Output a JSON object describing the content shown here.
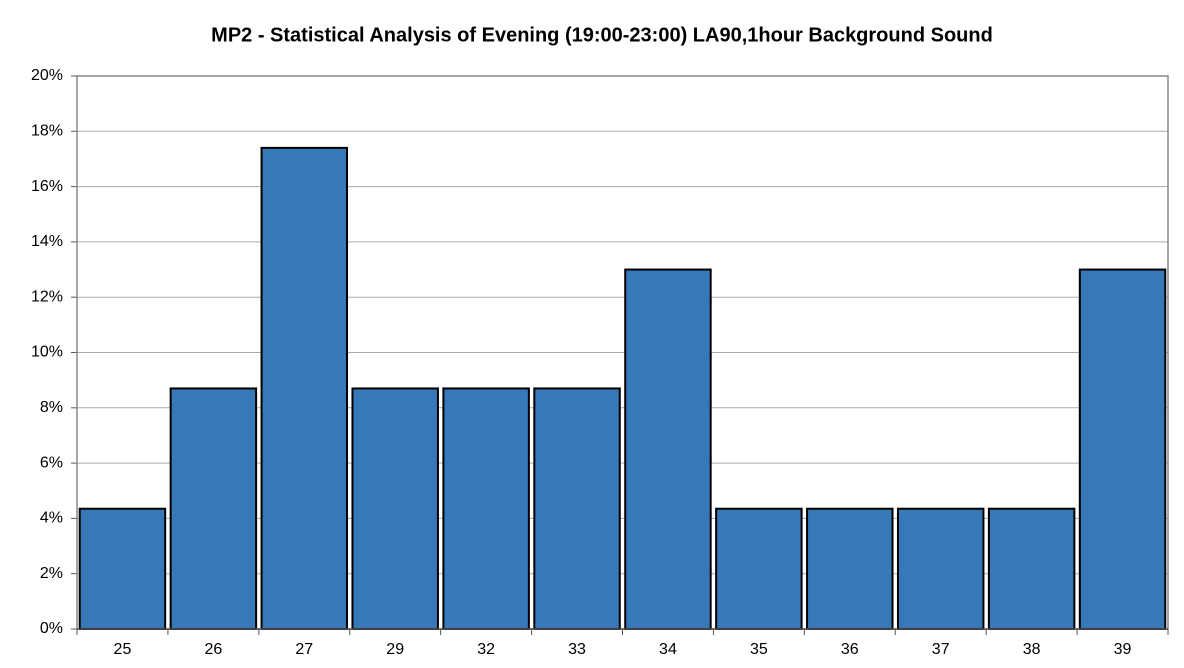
{
  "chart_data": {
    "type": "bar",
    "title": "MP2 - Statistical Analysis of Evening (19:00-23:00) LA90,1hour Background Sound",
    "categories": [
      "25",
      "26",
      "27",
      "29",
      "32",
      "33",
      "34",
      "35",
      "36",
      "37",
      "38",
      "39"
    ],
    "values": [
      4.35,
      8.7,
      17.4,
      8.7,
      8.7,
      8.7,
      13.0,
      4.35,
      4.35,
      4.35,
      4.35,
      13.0
    ],
    "color": "#3778b9",
    "ylim": [
      0,
      20
    ],
    "yticks": [
      {
        "value": 0,
        "label": "0%"
      },
      {
        "value": 2,
        "label": "2%"
      },
      {
        "value": 4,
        "label": "4%"
      },
      {
        "value": 6,
        "label": "6%"
      },
      {
        "value": 8,
        "label": "8%"
      },
      {
        "value": 10,
        "label": "10%"
      },
      {
        "value": 12,
        "label": "12%"
      },
      {
        "value": 14,
        "label": "14%"
      },
      {
        "value": 16,
        "label": "16%"
      },
      {
        "value": 18,
        "label": "18%"
      },
      {
        "value": 20,
        "label": "20%"
      }
    ],
    "grid": true
  }
}
